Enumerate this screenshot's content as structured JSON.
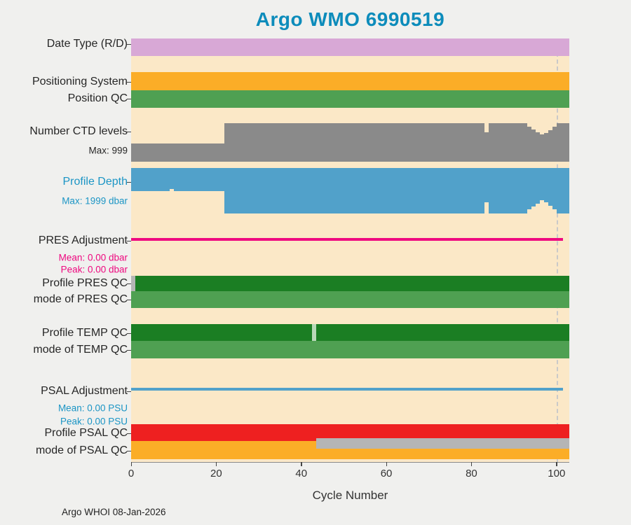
{
  "title": "Argo WMO 6990519",
  "footer": "Argo WHOI 08-Jan-2026",
  "x_axis": {
    "label": "Cycle Number",
    "ticks": [
      "0",
      "20",
      "40",
      "60",
      "80",
      "100"
    ]
  },
  "row_labels": {
    "date_type": "Date Type (R/D)",
    "positioning_system": "Positioning System",
    "position_qc": "Position QC",
    "ctd_levels": "Number CTD levels",
    "ctd_levels_max": "Max: 999",
    "profile_depth": "Profile Depth",
    "profile_depth_max": "Max: 1999 dbar",
    "pres_adjustment": "PRES Adjustment",
    "pres_mean": "Mean: 0.00 dbar",
    "pres_peak": "Peak: 0.00 dbar",
    "profile_pres_qc": "Profile PRES QC",
    "mode_pres_qc": "mode of PRES QC",
    "profile_temp_qc": "Profile TEMP QC",
    "mode_temp_qc": "mode of TEMP QC",
    "psal_adjustment": "PSAL Adjustment",
    "psal_mean": "Mean: 0.00 PSU",
    "psal_peak": "Peak: 0.00 PSU",
    "profile_psal_qc": "Profile PSAL QC",
    "mode_psal_qc": "mode of PSAL QC"
  },
  "chart_data": {
    "type": "bar",
    "title": "Argo WMO 6990519",
    "xlabel": "Cycle Number",
    "x_range": [
      0,
      103
    ],
    "x_ticks": [
      0,
      20,
      40,
      60,
      80,
      100
    ],
    "reference_line_x": 100,
    "legend_position": "none",
    "grid": false,
    "colors": {
      "plum": "#d8a8d6",
      "orange": "#fbad27",
      "green": "#4fa052",
      "dark_green": "#1b7e23",
      "gray": "#8a8a8a",
      "blue": "#51a1ca",
      "magenta": "#ee0a80",
      "red": "#ee2020",
      "silver": "#b5b5b5",
      "pale_green": "#b8d8b8",
      "plot_bg": "#fbe8c7",
      "dashed_line": "#c9c9c9",
      "title": "#0d8cbb",
      "teal_label": "#1b95c5"
    },
    "strip_rows": [
      {
        "id": "date_type",
        "label": "Date Type (R/D)",
        "segments": [
          {
            "start": 0,
            "end": 103,
            "color": "plum"
          }
        ]
      },
      {
        "id": "positioning_system",
        "label": "Positioning System",
        "segments": [
          {
            "start": 0,
            "end": 103,
            "color": "orange"
          }
        ]
      },
      {
        "id": "position_qc",
        "label": "Position QC",
        "segments": [
          {
            "start": 0,
            "end": 103,
            "color": "green"
          }
        ]
      },
      {
        "id": "pres_adjustment",
        "label": "PRES Adjustment",
        "mean": "0.00 dbar",
        "peak": "0.00 dbar",
        "segments": [
          {
            "start": 0,
            "end": 101.5,
            "color": "magenta"
          }
        ]
      },
      {
        "id": "profile_pres_qc",
        "label": "Profile PRES QC",
        "segments": [
          {
            "start": 0,
            "end": 1,
            "color": "silver"
          },
          {
            "start": 1,
            "end": 103,
            "color": "dark_green"
          }
        ]
      },
      {
        "id": "mode_pres_qc",
        "label": "mode of PRES QC",
        "segments": [
          {
            "start": 0,
            "end": 103,
            "color": "green"
          }
        ]
      },
      {
        "id": "profile_temp_qc",
        "label": "Profile TEMP QC",
        "segments": [
          {
            "start": 0,
            "end": 42.5,
            "color": "dark_green"
          },
          {
            "start": 42.5,
            "end": 43.5,
            "color": "pale_green"
          },
          {
            "start": 43.5,
            "end": 103,
            "color": "dark_green"
          }
        ]
      },
      {
        "id": "mode_temp_qc",
        "label": "mode of TEMP QC",
        "segments": [
          {
            "start": 0,
            "end": 103,
            "color": "green"
          }
        ]
      },
      {
        "id": "psal_adjustment",
        "label": "PSAL Adjustment",
        "mean": "0.00 PSU",
        "peak": "0.00 PSU",
        "segments": [
          {
            "start": 0,
            "end": 101.5,
            "color": "blue"
          }
        ]
      },
      {
        "id": "profile_psal_qc",
        "label": "Profile PSAL QC",
        "segments": [
          {
            "start": 0,
            "end": 103,
            "color": "red"
          }
        ]
      },
      {
        "id": "mode_psal_qc",
        "label": "mode of PSAL QC",
        "segments": [
          {
            "start": 0,
            "end": 103,
            "color": "orange"
          }
        ]
      },
      {
        "id": "psal_qc_gray_overlay",
        "label": "",
        "segments": [
          {
            "start": 43.5,
            "end": 103,
            "color": "silver"
          }
        ]
      }
    ],
    "ctd_levels": {
      "label": "Number CTD levels",
      "max": 999,
      "values": [
        480,
        480,
        480,
        480,
        480,
        480,
        480,
        480,
        480,
        480,
        480,
        480,
        480,
        480,
        480,
        480,
        480,
        480,
        480,
        480,
        480,
        480,
        999,
        999,
        999,
        999,
        999,
        999,
        999,
        999,
        999,
        999,
        999,
        999,
        999,
        999,
        999,
        999,
        999,
        999,
        999,
        999,
        999,
        999,
        999,
        999,
        999,
        999,
        999,
        999,
        999,
        999,
        999,
        999,
        999,
        999,
        999,
        999,
        999,
        999,
        999,
        999,
        999,
        999,
        999,
        999,
        999,
        999,
        999,
        999,
        999,
        999,
        999,
        999,
        999,
        999,
        999,
        999,
        999,
        999,
        999,
        999,
        999,
        760,
        999,
        999,
        999,
        999,
        999,
        999,
        999,
        999,
        999,
        900,
        830,
        760,
        700,
        740,
        820,
        900,
        999,
        999,
        999
      ]
    },
    "profile_depth": {
      "label": "Profile Depth",
      "max_dbar": 1999,
      "values": [
        1000,
        1000,
        1000,
        1000,
        1000,
        1000,
        1000,
        1000,
        1000,
        930,
        1000,
        1000,
        1000,
        1000,
        1000,
        1000,
        1000,
        1000,
        1000,
        1000,
        1000,
        1000,
        1999,
        1999,
        1999,
        1999,
        1999,
        1999,
        1999,
        1999,
        1999,
        1999,
        1999,
        1999,
        1999,
        1999,
        1999,
        1999,
        1999,
        1999,
        1999,
        1999,
        1999,
        1999,
        1999,
        1999,
        1999,
        1999,
        1999,
        1999,
        1999,
        1999,
        1999,
        1999,
        1999,
        1999,
        1999,
        1999,
        1999,
        1999,
        1999,
        1999,
        1999,
        1999,
        1999,
        1999,
        1999,
        1999,
        1999,
        1999,
        1999,
        1999,
        1999,
        1999,
        1999,
        1999,
        1999,
        1999,
        1999,
        1999,
        1999,
        1999,
        1999,
        1500,
        1999,
        1999,
        1999,
        1999,
        1999,
        1999,
        1999,
        1999,
        1999,
        1820,
        1700,
        1560,
        1430,
        1500,
        1650,
        1800,
        1999,
        1999,
        1999
      ]
    }
  }
}
